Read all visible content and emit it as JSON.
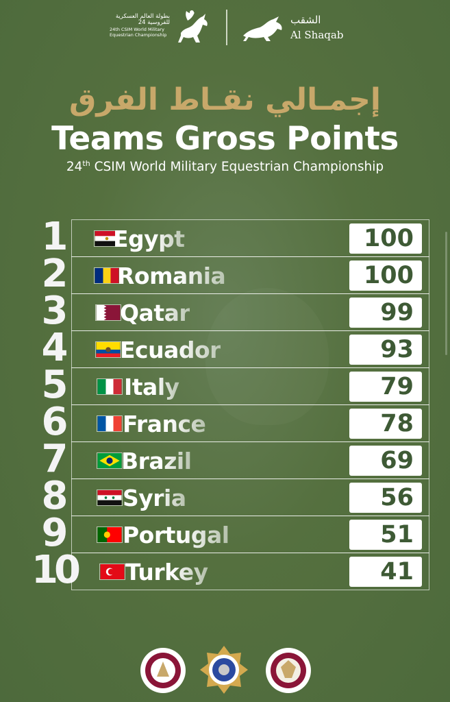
{
  "header": {
    "event_ar": "بطولة العالم العسكرية للفروسية 24",
    "event_en": "24th CSIM World Military Equestrian Championship",
    "sponsor_ar": "الشقب",
    "sponsor_en": "Al Shaqab"
  },
  "title_ar": "إجمـالي نقـاط الفرق",
  "title_en": "Teams Gross Points",
  "subtitle": {
    "num": "24",
    "sup": "th",
    "rest": " CSIM World Military Equestrian Championship"
  },
  "rows": [
    {
      "rank": "1",
      "country": "Egypt",
      "points": "100"
    },
    {
      "rank": "2",
      "country": "Romania",
      "points": "100"
    },
    {
      "rank": "3",
      "country": "Qatar",
      "points": "99"
    },
    {
      "rank": "4",
      "country": "Ecuador",
      "points": "93"
    },
    {
      "rank": "5",
      "country": "Italy",
      "points": "79"
    },
    {
      "rank": "6",
      "country": "France",
      "points": "78"
    },
    {
      "rank": "7",
      "country": "Brazil",
      "points": "69"
    },
    {
      "rank": "8",
      "country": "Syria",
      "points": "56"
    },
    {
      "rank": "9",
      "country": "Portugal",
      "points": "51"
    },
    {
      "rank": "10",
      "country": "Turkey",
      "points": "41"
    }
  ],
  "colors": {
    "background": "#55703f",
    "title_ar": "#c8a86a",
    "points_text": "#3e5a35"
  }
}
